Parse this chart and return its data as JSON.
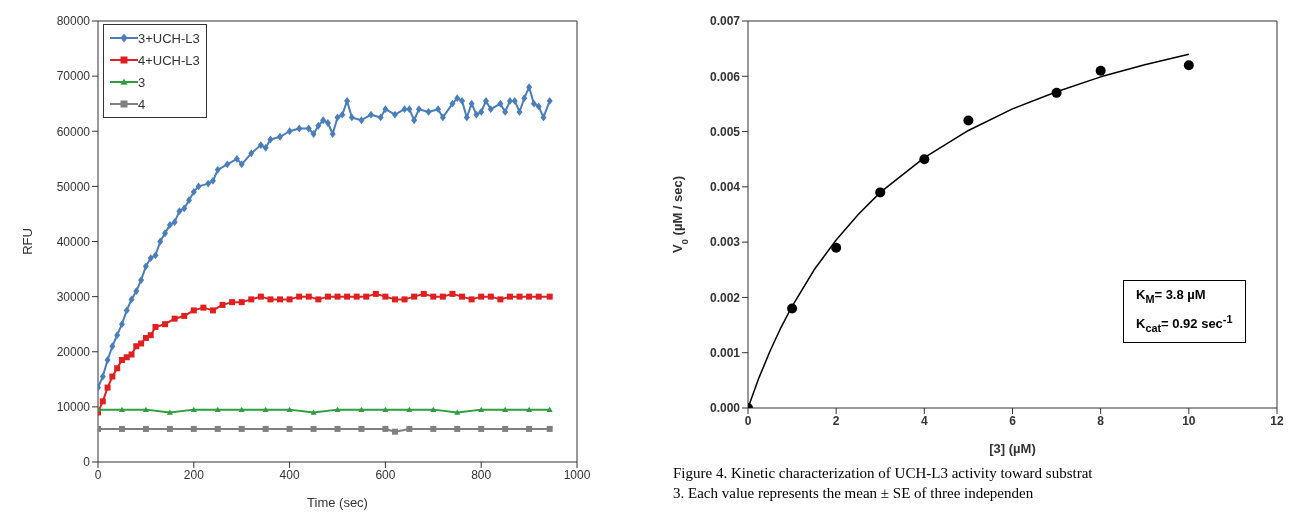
{
  "chart_data": [
    {
      "type": "line",
      "xlabel": "Time (sec)",
      "ylabel": "RFU",
      "xlim": [
        0,
        1000
      ],
      "xticks": [
        0,
        200,
        400,
        600,
        800,
        1000
      ],
      "ylim": [
        0,
        80000
      ],
      "yticks": [
        0,
        10000,
        20000,
        30000,
        40000,
        50000,
        60000,
        70000,
        80000
      ],
      "legend": "top left",
      "line_style": "solid",
      "series": [
        {
          "name": "3+UCH-L3",
          "color": "#4a7ebb",
          "marker": "diamond",
          "x": [
            0,
            10,
            20,
            30,
            40,
            50,
            60,
            70,
            80,
            90,
            100,
            110,
            120,
            130,
            140,
            150,
            160,
            170,
            180,
            190,
            200,
            210,
            230,
            240,
            250,
            270,
            290,
            300,
            320,
            340,
            350,
            360,
            380,
            400,
            420,
            440,
            450,
            460,
            470,
            480,
            490,
            500,
            510,
            520,
            530,
            550,
            570,
            590,
            600,
            620,
            640,
            650,
            660,
            670,
            690,
            710,
            720,
            740,
            750,
            760,
            770,
            780,
            790,
            800,
            810,
            820,
            840,
            850,
            860,
            870,
            880,
            890,
            900,
            910,
            920,
            930,
            943
          ],
          "values": [
            13500,
            15500,
            18500,
            21000,
            23000,
            25000,
            27500,
            29500,
            31000,
            33000,
            35500,
            37000,
            37500,
            40000,
            41500,
            43000,
            43500,
            45500,
            46000,
            47500,
            49000,
            50000,
            50500,
            51000,
            53000,
            54000,
            55000,
            54000,
            56000,
            57500,
            57000,
            58500,
            59000,
            60000,
            60500,
            60500,
            59500,
            61000,
            62000,
            61500,
            59500,
            62500,
            63000,
            65500,
            62500,
            62000,
            63000,
            62500,
            64000,
            63000,
            64000,
            64000,
            62000,
            64000,
            63500,
            64000,
            62500,
            65000,
            66000,
            65500,
            62500,
            65000,
            63000,
            63500,
            65500,
            64000,
            65000,
            63500,
            65500,
            65500,
            63500,
            66000,
            68000,
            65000,
            64500,
            62500,
            65500
          ]
        },
        {
          "name": "4+UCH-L3",
          "color": "#e02020",
          "marker": "square",
          "x": [
            0,
            10,
            20,
            30,
            40,
            50,
            60,
            70,
            80,
            90,
            100,
            110,
            120,
            140,
            160,
            180,
            200,
            220,
            240,
            260,
            280,
            300,
            320,
            340,
            360,
            380,
            400,
            420,
            440,
            460,
            480,
            500,
            520,
            540,
            560,
            580,
            600,
            620,
            640,
            660,
            680,
            700,
            720,
            740,
            760,
            780,
            800,
            820,
            840,
            860,
            880,
            900,
            920,
            943
          ],
          "values": [
            9000,
            11000,
            13500,
            15500,
            17000,
            18500,
            19000,
            19500,
            21000,
            21500,
            22500,
            23000,
            24500,
            25000,
            26000,
            26500,
            27500,
            28000,
            27500,
            28500,
            29000,
            29000,
            29500,
            30000,
            29500,
            29500,
            29500,
            30000,
            30000,
            29500,
            30000,
            30000,
            30000,
            30000,
            30000,
            30500,
            30000,
            29500,
            29500,
            30000,
            30500,
            30000,
            30000,
            30500,
            30000,
            29500,
            30000,
            30000,
            29500,
            30000,
            30000,
            30000,
            30000,
            30000
          ]
        },
        {
          "name": "3",
          "color": "#2e9e3e",
          "marker": "triangle",
          "x": [
            0,
            50,
            100,
            150,
            200,
            250,
            300,
            350,
            400,
            450,
            500,
            550,
            600,
            650,
            700,
            750,
            800,
            850,
            900,
            943
          ],
          "values": [
            9500,
            9500,
            9500,
            9000,
            9500,
            9500,
            9500,
            9500,
            9500,
            9000,
            9500,
            9500,
            9500,
            9500,
            9500,
            9000,
            9500,
            9500,
            9500,
            9500
          ]
        },
        {
          "name": "4",
          "color": "#808080",
          "marker": "square",
          "x": [
            0,
            50,
            100,
            150,
            200,
            250,
            300,
            350,
            400,
            450,
            500,
            550,
            600,
            620,
            650,
            700,
            750,
            800,
            850,
            900,
            943
          ],
          "values": [
            6000,
            6000,
            6000,
            6000,
            6000,
            6000,
            6000,
            6000,
            6000,
            6000,
            6000,
            6000,
            6000,
            5500,
            6000,
            6000,
            6000,
            6000,
            6000,
            6000,
            6000
          ]
        }
      ]
    },
    {
      "type": "scatter",
      "xlabel": "[3] (µM)",
      "ylabel": "V$_{0}$ (µM / sec)",
      "xlim": [
        0,
        12
      ],
      "xticks": [
        0,
        2,
        4,
        6,
        8,
        10,
        12
      ],
      "ylim": [
        0,
        0.007
      ],
      "yticks": [
        {
          "value": 0,
          "label": "0.000"
        },
        0.001,
        0.002,
        0.003,
        0.004,
        0.005,
        0.006,
        0.007
      ],
      "annotations": [
        "K$_{M}$= 3.8 µM",
        "K$_{cat}$= 0.92 sec$^{-1}$",
        "Figure 4. Kinetic characterization of UCH-L3 activity toward substrat",
        "3. Each value represents the mean ± SE of three independen"
      ],
      "series": [
        {
          "color": "#000000",
          "marker": "circle",
          "x": [
            0,
            1,
            2,
            3,
            4,
            5,
            7,
            8,
            10
          ],
          "values": [
            0,
            0.0018,
            0.0029,
            0.0039,
            0.0045,
            0.0052,
            0.0057,
            0.0061,
            0.0062
          ]
        },
        {
          "type": "line",
          "color": "#000000",
          "marker": "none",
          "x": [
            0,
            0.25,
            0.5,
            0.75,
            1,
            1.5,
            2,
            2.5,
            3,
            4,
            5,
            6,
            7,
            8,
            9,
            10
          ],
          "values": [
            0,
            0.00055,
            0.00103,
            0.00146,
            0.00184,
            0.0025,
            0.00304,
            0.0035,
            0.0039,
            0.00453,
            0.00502,
            0.00541,
            0.00572,
            0.00599,
            0.00621,
            0.0064
          ]
        }
      ]
    }
  ]
}
